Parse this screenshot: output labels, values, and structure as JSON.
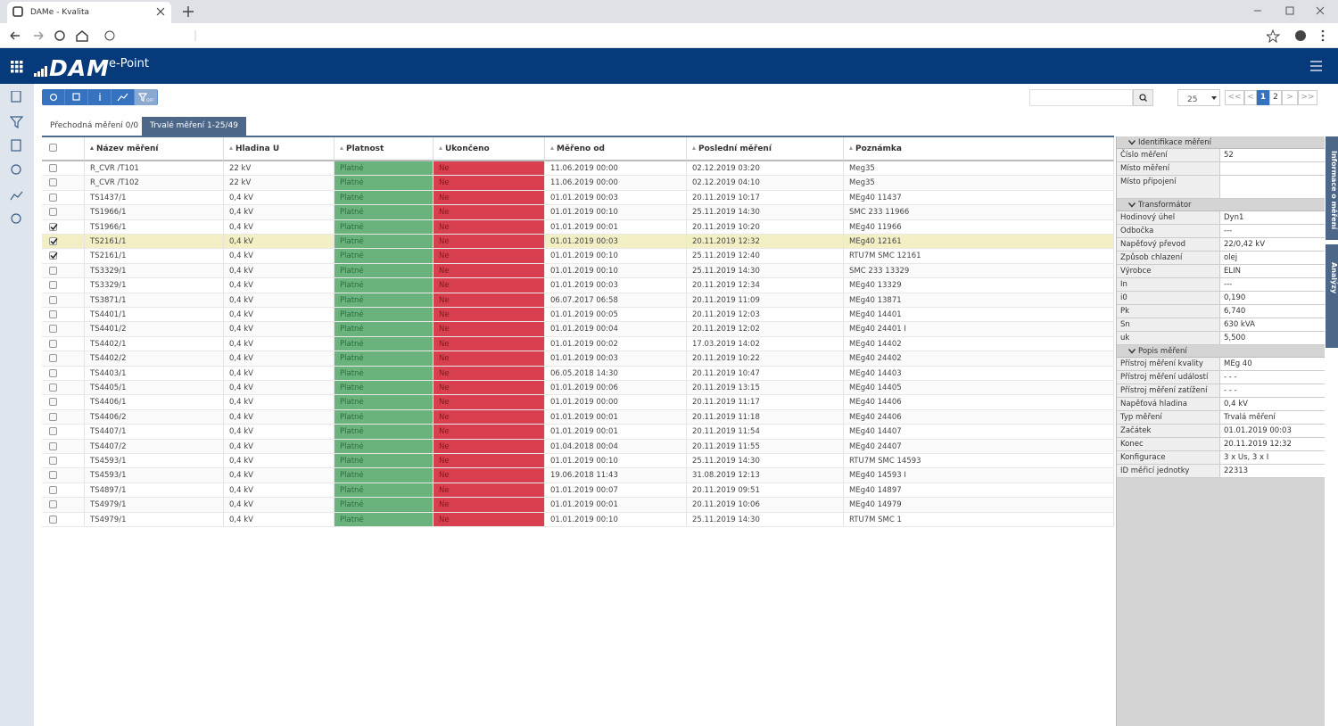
{
  "browser": {
    "tab_title": "DAMe - Kvalita"
  },
  "header": {
    "logo": "DAM",
    "logo_suffix": "e-Point"
  },
  "toolbar": {
    "filter_label": "OFF",
    "page_size": "25",
    "pager": [
      "<<",
      "<",
      "1",
      "2",
      ">",
      ">>"
    ],
    "current_page": "1"
  },
  "tabs": [
    "Přechodná měření 0/0",
    "Trvalé měření 1-25/49"
  ],
  "active_tab": 1,
  "table": {
    "columns": [
      "Název měření",
      "Hladina U",
      "Platnost",
      "Ukončeno",
      "Měřeno od",
      "Poslední měření",
      "Poznámka"
    ],
    "rows": [
      {
        "cells": [
          "R_CVR /T101",
          "22 kV",
          "Platné",
          "Ne",
          "11.06.2019 00:00",
          "02.12.2019 03:20",
          "Meg35"
        ],
        "checked": false
      },
      {
        "cells": [
          "R_CVR /T102",
          "22 kV",
          "Platné",
          "Ne",
          "11.06.2019 00:00",
          "02.12.2019 04:10",
          "Meg35"
        ],
        "checked": false
      },
      {
        "cells": [
          "TS1437/1",
          "0,4 kV",
          "Platné",
          "Ne",
          "01.01.2019 00:03",
          "20.11.2019 10:17",
          "MEg40 11437"
        ],
        "checked": false
      },
      {
        "cells": [
          "TS1966/1",
          "0,4 kV",
          "Platné",
          "Ne",
          "01.01.2019 00:10",
          "25.11.2019 14:30",
          "SMC 233 11966"
        ],
        "checked": false
      },
      {
        "cells": [
          "TS1966/1",
          "0,4 kV",
          "Platné",
          "Ne",
          "01.01.2019 00:01",
          "20.11.2019 10:20",
          "MEg40 11966"
        ],
        "checked": true
      },
      {
        "cells": [
          "TS2161/1",
          "0,4 kV",
          "Platné",
          "Ne",
          "01.01.2019 00:03",
          "20.11.2019 12:32",
          "MEg40 12161"
        ],
        "checked": true,
        "highlighted": true
      },
      {
        "cells": [
          "TS2161/1",
          "0,4 kV",
          "Platné",
          "Ne",
          "01.01.2019 00:10",
          "25.11.2019 12:40",
          "RTU7M SMC 12161"
        ],
        "checked": true
      },
      {
        "cells": [
          "TS3329/1",
          "0,4 kV",
          "Platné",
          "Ne",
          "01.01.2019 00:10",
          "25.11.2019 14:30",
          "SMC 233 13329"
        ],
        "checked": false
      },
      {
        "cells": [
          "TS3329/1",
          "0,4 kV",
          "Platné",
          "Ne",
          "01.01.2019 00:03",
          "20.11.2019 12:34",
          "MEg40 13329"
        ],
        "checked": false
      },
      {
        "cells": [
          "TS3871/1",
          "0,4 kV",
          "Platné",
          "Ne",
          "06.07.2017 06:58",
          "20.11.2019 11:09",
          "MEg40 13871"
        ],
        "checked": false
      },
      {
        "cells": [
          "TS4401/1",
          "0,4 kV",
          "Platné",
          "Ne",
          "01.01.2019 00:05",
          "20.11.2019 12:03",
          "MEg40 14401"
        ],
        "checked": false
      },
      {
        "cells": [
          "TS4401/2",
          "0,4 kV",
          "Platné",
          "Ne",
          "01.01.2019 00:04",
          "20.11.2019 12:02",
          "MEg40 24401 I"
        ],
        "checked": false
      },
      {
        "cells": [
          "TS4402/1",
          "0,4 kV",
          "Platné",
          "Ne",
          "01.01.2019 00:02",
          "17.03.2019 14:02",
          "MEg40 14402"
        ],
        "checked": false
      },
      {
        "cells": [
          "TS4402/2",
          "0,4 kV",
          "Platné",
          "Ne",
          "01.01.2019 00:03",
          "20.11.2019 10:22",
          "MEg40 24402"
        ],
        "checked": false
      },
      {
        "cells": [
          "TS4403/1",
          "0,4 kV",
          "Platné",
          "Ne",
          "06.05.2018 14:30",
          "20.11.2019 10:47",
          "MEg40 14403"
        ],
        "checked": false
      },
      {
        "cells": [
          "TS4405/1",
          "0,4 kV",
          "Platné",
          "Ne",
          "01.01.2019 00:06",
          "20.11.2019 13:15",
          "MEg40 14405"
        ],
        "checked": false
      },
      {
        "cells": [
          "TS4406/1",
          "0,4 kV",
          "Platné",
          "Ne",
          "01.01.2019 00:00",
          "20.11.2019 11:17",
          "MEg40 14406"
        ],
        "checked": false
      },
      {
        "cells": [
          "TS4406/2",
          "0,4 kV",
          "Platné",
          "Ne",
          "01.01.2019 00:01",
          "20.11.2019 11:18",
          "MEg40 24406"
        ],
        "checked": false
      },
      {
        "cells": [
          "TS4407/1",
          "0,4 kV",
          "Platné",
          "Ne",
          "01.01.2019 00:01",
          "20.11.2019 11:54",
          "MEg40 14407"
        ],
        "checked": false
      },
      {
        "cells": [
          "TS4407/2",
          "0,4 kV",
          "Platné",
          "Ne",
          "01.04.2018 00:04",
          "20.11.2019 11:55",
          "MEg40 24407"
        ],
        "checked": false
      },
      {
        "cells": [
          "TS4593/1",
          "0,4 kV",
          "Platné",
          "Ne",
          "01.01.2019 00:10",
          "25.11.2019 14:30",
          "RTU7M SMC 14593"
        ],
        "checked": false
      },
      {
        "cells": [
          "TS4593/1",
          "0,4 kV",
          "Platné",
          "Ne",
          "19.06.2018 11:43",
          "31.08.2019 12:13",
          "MEg40 14593 I"
        ],
        "checked": false
      },
      {
        "cells": [
          "TS4897/1",
          "0,4 kV",
          "Platné",
          "Ne",
          "01.01.2019 00:07",
          "20.11.2019 09:51",
          "MEg40 14897"
        ],
        "checked": false
      },
      {
        "cells": [
          "TS4979/1",
          "0,4 kV",
          "Platné",
          "Ne",
          "01.01.2019 00:01",
          "20.11.2019 10:06",
          "MEg40 14979"
        ],
        "checked": false
      },
      {
        "cells": [
          "TS4979/1",
          "0,4 kV",
          "Platné",
          "Ne",
          "01.01.2019 00:10",
          "25.11.2019 14:30",
          "RTU7M SMC 1"
        ],
        "checked": false
      }
    ]
  },
  "info_panel": {
    "sections": [
      {
        "title": "Identifikace měření",
        "rows": [
          {
            "label": "Číslo měření",
            "value": "52"
          },
          {
            "label": "Místo měření"
          },
          {
            "label": "Místo připojení"
          }
        ]
      },
      {
        "title": "Transformátor",
        "rows": [
          {
            "label": "Hodinový úhel",
            "value": "Dyn1"
          },
          {
            "label": "Odbočka",
            "value": "---"
          },
          {
            "label": "Napěťový převod",
            "value": "22/0,42 kV"
          },
          {
            "label": "Způsob chlazení",
            "value": "olej"
          },
          {
            "label": "Výrobce",
            "value": "ELIN"
          },
          {
            "label": "In",
            "value": "---"
          },
          {
            "label": "i0",
            "value": "0,190"
          },
          {
            "label": "Pk",
            "value": "6,740"
          },
          {
            "label": "Sn",
            "value": "630 kVA"
          },
          {
            "label": "uk",
            "value": "5,500"
          }
        ]
      },
      {
        "title": "Popis měření",
        "rows": [
          {
            "label": "Přístroj měření kvality",
            "value": "MEg 40"
          },
          {
            "label": "Přístroj měření událostí",
            "value": "- - -"
          },
          {
            "label": "Přístroj měření zatížení",
            "value": "- - -"
          },
          {
            "label": "Napěťová hladina",
            "value": "0,4 kV"
          },
          {
            "label": "Typ měření",
            "value": "Trvalá měření"
          },
          {
            "label": "Začátek",
            "value": "01.01.2019 00:03"
          },
          {
            "label": "Konec",
            "value": "20.11.2019 12:32"
          },
          {
            "label": "Konfigurace",
            "value": "3 x Us, 3 x I"
          },
          {
            "label": "ID měřicí jednotky",
            "value": "22313"
          }
        ]
      }
    ]
  },
  "side_tabs": [
    "Informace o měření",
    "Analýzy"
  ]
}
